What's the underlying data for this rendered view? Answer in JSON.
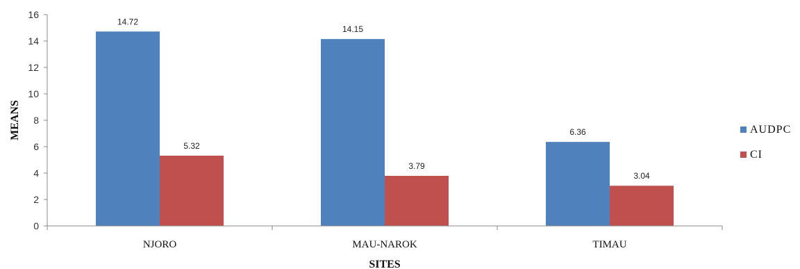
{
  "chart_data": {
    "type": "bar",
    "title": "",
    "xlabel": "SITES",
    "ylabel": "MEANS",
    "ylim": [
      0,
      16
    ],
    "yticks": [
      0,
      2,
      4,
      6,
      8,
      10,
      12,
      14,
      16
    ],
    "grid": false,
    "legend_position": "right",
    "categories": [
      "NJORO",
      "MAU-NAROK",
      "TIMAU"
    ],
    "series": [
      {
        "name": "AUDPC",
        "color": "#4F81BD",
        "values": [
          14.72,
          14.15,
          6.36
        ],
        "labels": [
          "14.72",
          "14.15",
          "6.36"
        ]
      },
      {
        "name": "CI",
        "color": "#C0504D",
        "values": [
          5.32,
          3.79,
          3.04
        ],
        "labels": [
          "5.32",
          "3.79",
          "3.04"
        ]
      }
    ]
  }
}
